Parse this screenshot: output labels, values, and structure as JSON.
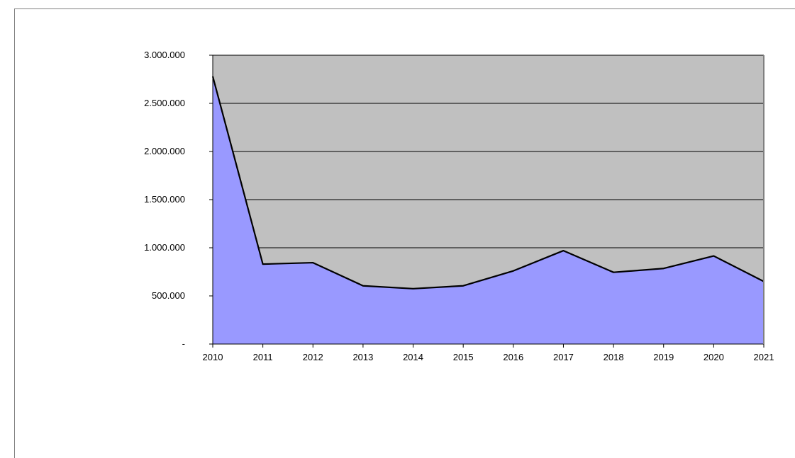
{
  "chart_data": {
    "type": "area",
    "x": [
      "2010",
      "2011",
      "2012",
      "2013",
      "2014",
      "2015",
      "2016",
      "2017",
      "2018",
      "2019",
      "2020",
      "2021"
    ],
    "series": [
      {
        "values": [
          2780000,
          830000,
          845000,
          605000,
          575000,
          605000,
          760000,
          970000,
          745000,
          785000,
          915000,
          650000
        ]
      }
    ],
    "ylim": [
      0,
      3000000
    ],
    "yticks": [
      0,
      500000,
      1000000,
      1500000,
      2000000,
      2500000,
      3000000
    ],
    "ytick_labels": [
      "-",
      "500.000",
      "1.000.000",
      "1.500.000",
      "2.000.000",
      "2.500.000",
      "3.000.000"
    ],
    "grid": true,
    "legend": "none",
    "colors": {
      "area_fill": "#9999ff",
      "line": "#000000",
      "plot_background": "#c0c0c0",
      "grid": "#000000",
      "axis": "#808080",
      "frame": "#808080"
    }
  }
}
